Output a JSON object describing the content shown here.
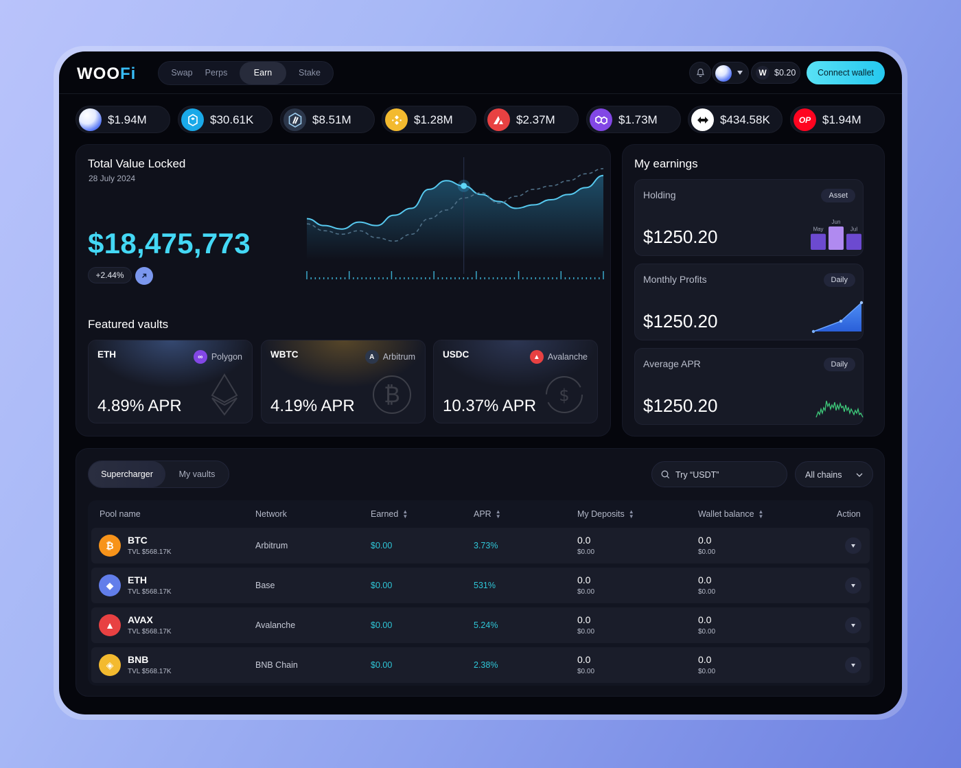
{
  "brand": {
    "logo_main": "WOO",
    "logo_accent": "Fi"
  },
  "nav": {
    "items": [
      "Swap",
      "Perps",
      "Earn",
      "Stake"
    ],
    "active": "Earn"
  },
  "header": {
    "wallet_symbol": "W",
    "wallet_balance": "$0.20",
    "connect_label": "Connect wallet",
    "bell_icon": "bell-icon"
  },
  "tickers": [
    {
      "icon": "ethereum-orb-icon",
      "value": "$1.94M",
      "color": "#dfe7ff"
    },
    {
      "icon": "fantom-icon",
      "value": "$30.61K",
      "color": "#1aa9e8"
    },
    {
      "icon": "arbitrum-icon",
      "value": "$8.51M",
      "color": "#2c374b"
    },
    {
      "icon": "bnb-icon",
      "value": "$1.28M",
      "color": "#f3ba2f"
    },
    {
      "icon": "avalanche-icon",
      "value": "$2.37M",
      "color": "#e84142"
    },
    {
      "icon": "polygon-icon",
      "value": "$1.73M",
      "color": "#8247e5"
    },
    {
      "icon": "swap-arrows-icon",
      "value": "$434.58K",
      "color": "#ffffff"
    },
    {
      "icon": "optimism-icon",
      "value": "$1.94M",
      "color": "#ff0420",
      "text": "OP"
    }
  ],
  "tvl": {
    "title": "Total Value Locked",
    "date": "28 July 2024",
    "value": "$18,475,773",
    "change": "+2.44%"
  },
  "chart_data": {
    "type": "line",
    "series": [
      {
        "values": [
          48,
          40,
          36,
          44,
          40,
          52,
          60,
          82,
          92,
          86,
          76,
          68,
          60,
          64,
          70,
          76,
          84,
          98
        ]
      },
      {
        "values": [
          42,
          34,
          30,
          34,
          26,
          22,
          30,
          48,
          58,
          72,
          78,
          66,
          74,
          82,
          86,
          92,
          100,
          106
        ]
      }
    ],
    "highlight_index": 9,
    "grid": false
  },
  "featured": {
    "title": "Featured vaults",
    "vaults": [
      {
        "symbol": "ETH",
        "network": "Polygon",
        "network_icon": "polygon-icon",
        "network_color": "#8247e5",
        "apr": "4.89% APR",
        "watermark": "ethereum-icon"
      },
      {
        "symbol": "WBTC",
        "network": "Arbitrum",
        "network_icon": "arbitrum-icon",
        "network_color": "#2c374b",
        "apr": "4.19% APR",
        "watermark": "bitcoin-icon"
      },
      {
        "symbol": "USDC",
        "network": "Avalanche",
        "network_icon": "avalanche-icon",
        "network_color": "#e84142",
        "apr": "10.37% APR",
        "watermark": "usdc-icon"
      }
    ]
  },
  "earnings": {
    "title": "My earnings",
    "cards": [
      {
        "label": "Holding",
        "tag": "Asset",
        "amount": "$1250.20",
        "mini": "bars",
        "bar_labels": [
          "May",
          "Jun",
          "Jul"
        ],
        "bar_values": [
          22,
          32,
          22
        ]
      },
      {
        "label": "Monthly Profits",
        "tag": "Daily",
        "amount": "$1250.20",
        "mini": "area"
      },
      {
        "label": "Average APR",
        "tag": "Daily",
        "amount": "$1250.20",
        "mini": "spark"
      }
    ]
  },
  "table": {
    "tabs": [
      "Supercharger",
      "My vaults"
    ],
    "active_tab": "Supercharger",
    "search_placeholder": "Try “USDT”",
    "chain_filter": "All chains",
    "columns": [
      "Pool name",
      "Network",
      "Earned",
      "APR",
      "My Deposits",
      "Wallet balance",
      "Action"
    ],
    "rows": [
      {
        "icon": "bitcoin-icon",
        "color": "#f7931a",
        "glyph": "₿",
        "name": "BTC",
        "tvl": "TVL $568.17K",
        "network": "Arbitrum",
        "earned": "$0.00",
        "apr": "3.73%",
        "dep": "0.0",
        "dep_usd": "$0.00",
        "wal": "0.0",
        "wal_usd": "$0.00"
      },
      {
        "icon": "ethereum-icon",
        "color": "#627eea",
        "glyph": "◆",
        "name": "ETH",
        "tvl": "TVL $568.17K",
        "network": "Base",
        "earned": "$0.00",
        "apr": "531%",
        "dep": "0.0",
        "dep_usd": "$0.00",
        "wal": "0.0",
        "wal_usd": "$0.00"
      },
      {
        "icon": "avalanche-icon",
        "color": "#e84142",
        "glyph": "▲",
        "name": "AVAX",
        "tvl": "TVL $568.17K",
        "network": "Avalanche",
        "earned": "$0.00",
        "apr": "5.24%",
        "dep": "0.0",
        "dep_usd": "$0.00",
        "wal": "0.0",
        "wal_usd": "$0.00"
      },
      {
        "icon": "bnb-icon",
        "color": "#f3ba2f",
        "glyph": "◈",
        "name": "BNB",
        "tvl": "TVL $568.17K",
        "network": "BNB Chain",
        "earned": "$0.00",
        "apr": "2.38%",
        "dep": "0.0",
        "dep_usd": "$0.00",
        "wal": "0.0",
        "wal_usd": "$0.00"
      }
    ]
  }
}
